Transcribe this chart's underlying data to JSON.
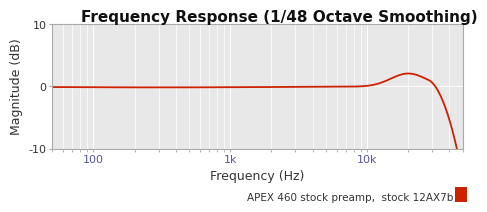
{
  "title": "Frequency Response (1/48 Octave Smoothing)",
  "xlabel": "Frequency (Hz)",
  "ylabel": "Magnitude (dB)",
  "ylim": [
    -10,
    10
  ],
  "xlim": [
    50,
    50000
  ],
  "line_color": "#cc2200",
  "line_width": 1.3,
  "legend_label": "APEX 460 stock preamp,  stock 12AX7b",
  "legend_color": "#cc2200",
  "bg_plot": "#e8e8e8",
  "bg_fig": "#ffffff",
  "grid_color": "#ffffff",
  "title_fontsize": 11,
  "axis_fontsize": 9,
  "tick_fontsize": 8,
  "xtick_color": "#555599",
  "ytick_color": "#333333"
}
